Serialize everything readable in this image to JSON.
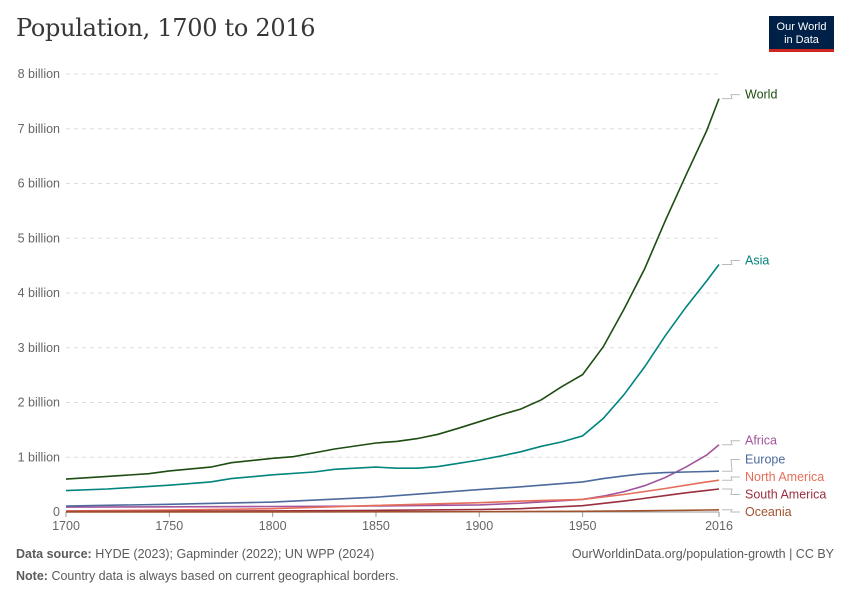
{
  "title": "Population, 1700 to 2016",
  "logo": {
    "line1": "Our World",
    "line2": "in Data"
  },
  "footer": {
    "source_label": "Data source:",
    "source_text": "HYDE (2023); Gapminder (2022); UN WPP (2024)",
    "note_label": "Note:",
    "note_text": "Country data is always based on current geographical borders.",
    "url": "OurWorldinData.org/population-growth | CC BY"
  },
  "chart_data": {
    "type": "line",
    "title": "Population, 1700 to 2016",
    "xlabel": "",
    "ylabel": "",
    "xlim": [
      1700,
      2016
    ],
    "ylim": [
      0,
      8000000000
    ],
    "x_ticks": [
      1700,
      1750,
      1800,
      1850,
      1900,
      1950,
      2016
    ],
    "x_tick_labels": [
      "1700",
      "1750",
      "1800",
      "1850",
      "1900",
      "1950",
      "2016"
    ],
    "y_ticks": [
      0,
      1000000000,
      2000000000,
      3000000000,
      4000000000,
      5000000000,
      6000000000,
      7000000000,
      8000000000
    ],
    "y_tick_labels": [
      "0",
      "1 billion",
      "2 billion",
      "3 billion",
      "4 billion",
      "5 billion",
      "6 billion",
      "7 billion",
      "8 billion"
    ],
    "grid": true,
    "series": [
      {
        "name": "World",
        "color": "#1e4d12",
        "x": [
          1700,
          1720,
          1740,
          1750,
          1770,
          1780,
          1800,
          1810,
          1820,
          1830,
          1850,
          1860,
          1870,
          1880,
          1890,
          1900,
          1910,
          1920,
          1930,
          1940,
          1950,
          1960,
          1970,
          1980,
          1990,
          2000,
          2010,
          2016
        ],
        "values": [
          600,
          650,
          700,
          750,
          820,
          900,
          980,
          1010,
          1080,
          1150,
          1260,
          1290,
          1340,
          1420,
          1530,
          1650,
          1770,
          1880,
          2050,
          2290,
          2510,
          3020,
          3700,
          4440,
          5320,
          6150,
          6960,
          7550
        ]
      },
      {
        "name": "Asia",
        "color": "#00847e",
        "x": [
          1700,
          1720,
          1750,
          1770,
          1780,
          1800,
          1820,
          1830,
          1850,
          1860,
          1870,
          1880,
          1890,
          1900,
          1910,
          1920,
          1930,
          1940,
          1950,
          1960,
          1970,
          1980,
          1990,
          2000,
          2010,
          2016
        ],
        "values": [
          390,
          420,
          490,
          550,
          610,
          680,
          730,
          780,
          820,
          800,
          800,
          830,
          890,
          950,
          1020,
          1100,
          1200,
          1280,
          1390,
          1710,
          2140,
          2650,
          3220,
          3740,
          4220,
          4520
        ]
      },
      {
        "name": "Africa",
        "color": "#a2559c",
        "x": [
          1700,
          1750,
          1800,
          1850,
          1900,
          1920,
          1950,
          1960,
          1970,
          1980,
          1990,
          2000,
          2010,
          2016
        ],
        "values": [
          90,
          95,
          100,
          110,
          130,
          160,
          230,
          290,
          370,
          480,
          630,
          820,
          1040,
          1230
        ]
      },
      {
        "name": "Europe",
        "color": "#4c6a9c",
        "x": [
          1700,
          1750,
          1800,
          1850,
          1900,
          1920,
          1950,
          1960,
          1970,
          1980,
          1990,
          2000,
          2010,
          2016
        ],
        "values": [
          110,
          140,
          180,
          270,
          410,
          460,
          550,
          610,
          660,
          700,
          720,
          730,
          740,
          745
        ]
      },
      {
        "name": "North America",
        "color": "#e56e5a",
        "x": [
          1700,
          1750,
          1800,
          1850,
          1900,
          1920,
          1950,
          1970,
          1990,
          2000,
          2010,
          2016
        ],
        "values": [
          20,
          35,
          60,
          120,
          170,
          200,
          230,
          320,
          430,
          490,
          550,
          580
        ]
      },
      {
        "name": "South America",
        "color": "#9a2f3f",
        "x": [
          1700,
          1750,
          1800,
          1850,
          1900,
          1920,
          1950,
          1970,
          1990,
          2000,
          2010,
          2016
        ],
        "values": [
          10,
          13,
          20,
          30,
          45,
          60,
          115,
          200,
          300,
          350,
          395,
          420
        ]
      },
      {
        "name": "Oceania",
        "color": "#a0522d",
        "x": [
          1700,
          1750,
          1800,
          1850,
          1900,
          1950,
          1970,
          1990,
          2000,
          2010,
          2016
        ],
        "values": [
          2,
          2,
          2,
          3,
          6,
          13,
          20,
          27,
          31,
          36,
          40
        ]
      }
    ],
    "value_unit": "million"
  }
}
